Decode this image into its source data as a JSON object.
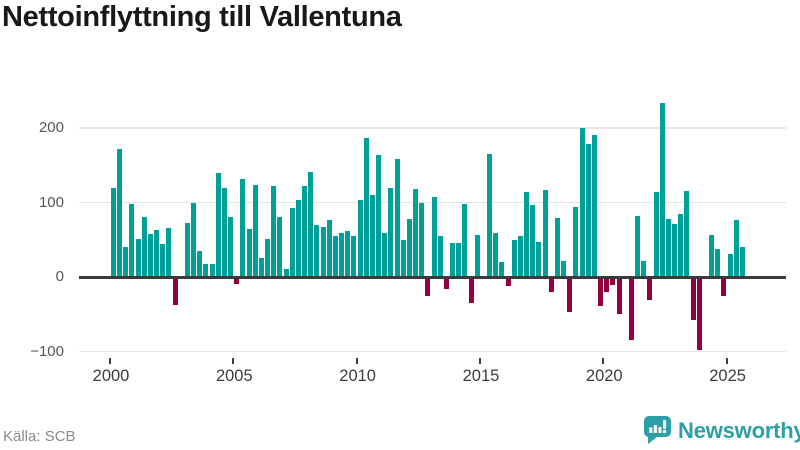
{
  "title": "Nettoinflyttning till Vallentuna",
  "footer": {
    "source": "Källa: SCB",
    "brand": "Newsworthy"
  },
  "colors": {
    "positive": "#00a099",
    "negative": "#93003d",
    "brand": "#2d9fa6",
    "grid": "#e5e5e5",
    "axis": "#3a3a3a"
  },
  "chart_data": {
    "type": "bar",
    "title": "Nettoinflyttning till Vallentuna",
    "xlabel": "",
    "ylabel": "",
    "ylim": [
      -100,
      240
    ],
    "grid": "horizontal",
    "legend": "none",
    "y_ticks": [
      200,
      100,
      0,
      -100
    ],
    "y_tick_labels": [
      "200",
      "100",
      "0",
      "−100"
    ],
    "x_ticks": [
      2000,
      2005,
      2010,
      2015,
      2020,
      2025
    ],
    "quarters": [
      "2000 Q1",
      "2000 Q2",
      "2000 Q3",
      "2000 Q4",
      "2001 Q1",
      "2001 Q2",
      "2001 Q3",
      "2001 Q4",
      "2002 Q1",
      "2002 Q2",
      "2002 Q3",
      "2002 Q4",
      "2003 Q1",
      "2003 Q2",
      "2003 Q3",
      "2003 Q4",
      "2004 Q1",
      "2004 Q2",
      "2004 Q3",
      "2004 Q4",
      "2005 Q1",
      "2005 Q2",
      "2005 Q3",
      "2005 Q4",
      "2006 Q1",
      "2006 Q2",
      "2006 Q3",
      "2006 Q4",
      "2007 Q1",
      "2007 Q2",
      "2007 Q3",
      "2007 Q4",
      "2008 Q1",
      "2008 Q2",
      "2008 Q3",
      "2008 Q4",
      "2009 Q1",
      "2009 Q2",
      "2009 Q3",
      "2009 Q4",
      "2010 Q1",
      "2010 Q2",
      "2010 Q3",
      "2010 Q4",
      "2011 Q1",
      "2011 Q2",
      "2011 Q3",
      "2011 Q4",
      "2012 Q1",
      "2012 Q2",
      "2012 Q3",
      "2012 Q4",
      "2013 Q1",
      "2013 Q2",
      "2013 Q3",
      "2013 Q4",
      "2014 Q1",
      "2014 Q2",
      "2014 Q3",
      "2014 Q4",
      "2015 Q1",
      "2015 Q2",
      "2015 Q3",
      "2015 Q4",
      "2016 Q1",
      "2016 Q2",
      "2016 Q3",
      "2016 Q4",
      "2017 Q1",
      "2017 Q2",
      "2017 Q3",
      "2017 Q4",
      "2018 Q1",
      "2018 Q2",
      "2018 Q3",
      "2018 Q4",
      "2019 Q1",
      "2019 Q2",
      "2019 Q3",
      "2019 Q4",
      "2020 Q1",
      "2020 Q2",
      "2020 Q3",
      "2020 Q4",
      "2021 Q1",
      "2021 Q2",
      "2021 Q3",
      "2021 Q4",
      "2022 Q1",
      "2022 Q2",
      "2022 Q3",
      "2022 Q4",
      "2023 Q1",
      "2023 Q2",
      "2023 Q3",
      "2023 Q4",
      "2024 Q1",
      "2024 Q2",
      "2024 Q3",
      "2024 Q4",
      "2025 Q1",
      "2025 Q2",
      "2025 Q3"
    ],
    "values": [
      120,
      172,
      40,
      98,
      51,
      81,
      58,
      63,
      44,
      66,
      -36,
      0,
      73,
      100,
      35,
      17,
      17,
      140,
      119,
      80,
      -7,
      132,
      64,
      124,
      25,
      51,
      122,
      81,
      11,
      93,
      103,
      122,
      141,
      70,
      67,
      77,
      55,
      59,
      62,
      55,
      103,
      187,
      110,
      164,
      59,
      119,
      158,
      50,
      78,
      118,
      99,
      -24,
      107,
      55,
      -14,
      46,
      46,
      98,
      -33,
      56,
      0,
      165,
      59,
      20,
      -10,
      49,
      55,
      114,
      96,
      47,
      117,
      -18,
      79,
      21,
      -45,
      94,
      200,
      178,
      191,
      -37,
      -18,
      -9,
      -48,
      0,
      -82,
      82,
      22,
      -29,
      114,
      234,
      78,
      71,
      85,
      115,
      -56,
      -96,
      0,
      57,
      38,
      -24,
      31,
      77,
      40
    ]
  }
}
